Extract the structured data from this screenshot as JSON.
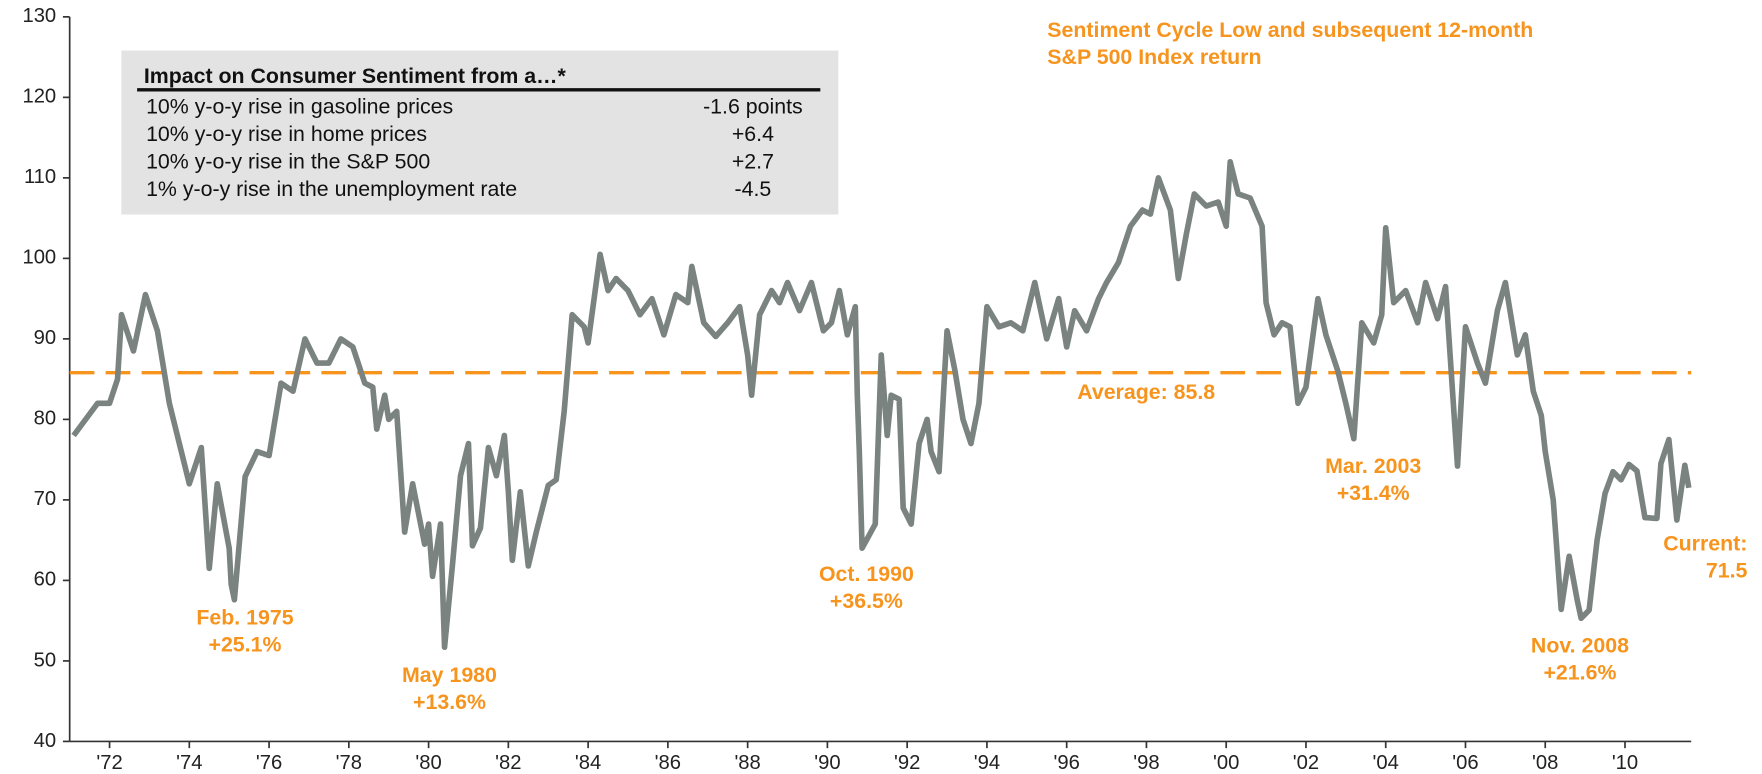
{
  "chart_data": {
    "type": "line",
    "annotation_title": [
      "Sentiment Cycle Low and subsequent 12-month",
      "S&P 500 Index return"
    ],
    "table": {
      "title": "Impact on Consumer Sentiment from a…*",
      "rows": [
        [
          "10% y-o-y rise in gasoline prices",
          "-1.6 points"
        ],
        [
          "10% y-o-y rise in home prices",
          "+6.4"
        ],
        [
          "10% y-o-y rise in the S&P 500",
          "+2.7"
        ],
        [
          "1% y-o-y rise in the unemployment rate",
          "-4.5"
        ]
      ]
    },
    "annotations": [
      [
        "Feb. 1975",
        "+25.1%"
      ],
      [
        "May 1980",
        "+13.6%"
      ],
      [
        "Oct. 1990",
        "+36.5%"
      ],
      [
        "Mar. 2003",
        "+31.4%"
      ],
      [
        "Nov. 2008",
        "+21.6%"
      ],
      [
        "Current:",
        "71.5"
      ]
    ],
    "average": 85.8,
    "average_label": "Average: 85.8",
    "average_color": "#f7941d",
    "xlim": [
      1971.0,
      2011.66
    ],
    "ylim": [
      40,
      130
    ],
    "yticks": [
      40,
      50,
      60,
      70,
      80,
      90,
      100,
      110,
      120,
      130
    ],
    "xticks": [
      {
        "value": 1972,
        "label": "'72"
      },
      {
        "value": 1974,
        "label": "'74"
      },
      {
        "value": 1976,
        "label": "'76"
      },
      {
        "value": 1978,
        "label": "'78"
      },
      {
        "value": 1980,
        "label": "'80"
      },
      {
        "value": 1982,
        "label": "'82"
      },
      {
        "value": 1984,
        "label": "'84"
      },
      {
        "value": 1986,
        "label": "'86"
      },
      {
        "value": 1988,
        "label": "'88"
      },
      {
        "value": 1990,
        "label": "'90"
      },
      {
        "value": 1992,
        "label": "'92"
      },
      {
        "value": 1994,
        "label": "'94"
      },
      {
        "value": 1996,
        "label": "'96"
      },
      {
        "value": 1998,
        "label": "'98"
      },
      {
        "value": 2000,
        "label": "'00"
      },
      {
        "value": 2002,
        "label": "'02"
      },
      {
        "value": 2004,
        "label": "'04"
      },
      {
        "value": 2006,
        "label": "'06"
      },
      {
        "value": 2008,
        "label": "'08"
      },
      {
        "value": 2010,
        "label": "'10"
      }
    ],
    "x": [
      1971.1,
      1971.4,
      1971.7,
      1972.0,
      1972.2,
      1972.3,
      1972.6,
      1972.9,
      1973.2,
      1973.5,
      1973.8,
      1974.0,
      1974.3,
      1974.5,
      1974.7,
      1975.0,
      1975.05,
      1975.13,
      1975.4,
      1975.7,
      1976.0,
      1976.3,
      1976.6,
      1976.9,
      1977.2,
      1977.5,
      1977.8,
      1978.1,
      1978.4,
      1978.6,
      1978.7,
      1978.9,
      1979.0,
      1979.2,
      1979.4,
      1979.6,
      1979.9,
      1980.0,
      1980.1,
      1980.3,
      1980.4,
      1980.6,
      1980.8,
      1981.0,
      1981.1,
      1981.3,
      1981.5,
      1981.7,
      1981.9,
      1982.0,
      1982.1,
      1982.3,
      1982.5,
      1982.7,
      1983.0,
      1983.2,
      1983.4,
      1983.6,
      1983.9,
      1984.0,
      1984.3,
      1984.5,
      1984.7,
      1985.0,
      1985.3,
      1985.6,
      1985.9,
      1986.2,
      1986.5,
      1986.6,
      1986.9,
      1987.2,
      1987.5,
      1987.8,
      1988.0,
      1988.1,
      1988.3,
      1988.6,
      1988.8,
      1989.0,
      1989.3,
      1989.6,
      1989.9,
      1990.1,
      1990.3,
      1990.5,
      1990.7,
      1990.75,
      1990.8,
      1990.87,
      1991.2,
      1991.35,
      1991.5,
      1991.6,
      1991.8,
      1991.9,
      1992.1,
      1992.3,
      1992.5,
      1992.6,
      1992.8,
      1993.0,
      1993.2,
      1993.4,
      1993.6,
      1993.8,
      1994.0,
      1994.3,
      1994.6,
      1994.9,
      1995.2,
      1995.5,
      1995.8,
      1996.0,
      1996.2,
      1996.5,
      1996.8,
      1997.0,
      1997.3,
      1997.6,
      1997.9,
      1998.1,
      1998.3,
      1998.6,
      1998.8,
      1999.0,
      1999.2,
      1999.5,
      1999.8,
      2000.0,
      2000.1,
      2000.3,
      2000.6,
      2000.9,
      2001.0,
      2001.2,
      2001.4,
      2001.6,
      2001.8,
      2002.0,
      2002.3,
      2002.5,
      2002.8,
      2003.0,
      2003.2,
      2003.4,
      2003.7,
      2003.9,
      2004.0,
      2004.2,
      2004.5,
      2004.8,
      2005.0,
      2005.3,
      2005.5,
      2005.8,
      2006.0,
      2006.3,
      2006.5,
      2006.8,
      2007.0,
      2007.3,
      2007.5,
      2007.7,
      2007.9,
      2008.0,
      2008.2,
      2008.4,
      2008.6,
      2008.8,
      2008.9,
      2009.1,
      2009.3,
      2009.5,
      2009.7,
      2009.9,
      2010.1,
      2010.3,
      2010.5,
      2010.8,
      2010.9,
      2011.1,
      2011.3,
      2011.5,
      2011.6
    ],
    "series": [
      {
        "name": "Consumer Sentiment",
        "color": "#7a8380",
        "values": [
          78,
          80,
          82,
          82,
          85,
          93,
          88.5,
          95.5,
          91,
          82,
          76,
          72,
          76.5,
          61.5,
          72,
          64,
          59.5,
          57.6,
          72.9,
          76,
          75.5,
          84.5,
          83.5,
          90,
          87,
          87,
          90,
          89,
          84.5,
          84,
          78.8,
          83,
          80,
          81,
          66,
          72,
          64.5,
          67,
          60.5,
          67,
          51.7,
          62,
          73,
          77,
          64.3,
          66.5,
          76.5,
          73,
          78,
          71,
          62.5,
          71,
          61.8,
          66,
          71.8,
          72.5,
          81,
          93,
          91.5,
          89.5,
          100.5,
          96,
          97.5,
          96,
          93,
          95,
          90.5,
          95.5,
          94.5,
          99,
          92,
          90.3,
          92,
          94,
          88,
          83,
          93,
          96,
          94.5,
          97,
          93.5,
          97,
          91,
          92,
          96,
          90.5,
          94,
          83,
          76,
          64,
          67,
          88,
          78,
          83,
          82.5,
          69,
          67,
          77,
          80,
          76,
          73.5,
          91,
          86,
          80,
          77,
          82,
          94,
          91.5,
          92,
          91,
          97,
          90,
          95,
          89,
          93.5,
          91,
          95,
          97,
          99.5,
          104,
          106,
          105.5,
          110,
          106,
          97.5,
          103,
          108,
          106.5,
          107,
          104,
          112,
          108,
          107.5,
          104,
          94.5,
          90.5,
          92,
          91.5,
          82,
          84,
          95,
          90.5,
          86,
          82,
          77.6,
          92,
          89.5,
          93,
          103.8,
          94.5,
          96,
          92,
          97,
          92.5,
          96.5,
          74.2,
          91.5,
          87,
          84.5,
          93.5,
          97,
          88,
          90.5,
          83.5,
          80.5,
          76,
          70,
          56.4,
          63,
          57.6,
          55.3,
          56.3,
          65,
          70.8,
          73.5,
          72.5,
          74.4,
          73.6,
          67.8,
          67.7,
          74.5,
          77.5,
          67.5,
          74.3,
          71.5
        ]
      }
    ]
  }
}
